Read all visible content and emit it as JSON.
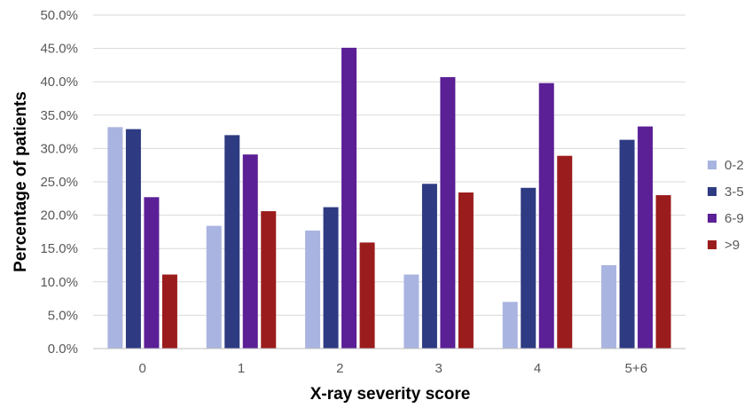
{
  "chart_data": {
    "type": "bar",
    "xlabel": "X-ray severity score",
    "ylabel": "Percentage of patients",
    "categories": [
      "0",
      "1",
      "2",
      "3",
      "4",
      "5+6"
    ],
    "ylim": [
      0,
      50
    ],
    "yticks": [
      0,
      5,
      10,
      15,
      20,
      25,
      30,
      35,
      40,
      45,
      50
    ],
    "ytick_labels": [
      "0.0%",
      "5.0%",
      "10.0%",
      "15.0%",
      "20.0%",
      "25.0%",
      "30.0%",
      "35.0%",
      "40.0%",
      "45.0%",
      "50.0%"
    ],
    "grid": true,
    "legend_position": "right",
    "series": [
      {
        "name": "0-2",
        "color": "#a9b4e0",
        "values": [
          33.2,
          18.4,
          17.7,
          11.1,
          7.0,
          12.5
        ]
      },
      {
        "name": "3-5",
        "color": "#2e3b82",
        "values": [
          32.9,
          32.0,
          21.2,
          24.7,
          24.1,
          31.3
        ]
      },
      {
        "name": "6-9",
        "color": "#5b1f96",
        "values": [
          22.7,
          29.1,
          45.1,
          40.7,
          39.8,
          33.3
        ]
      },
      {
        "name": ">9",
        "color": "#9b1c1c",
        "values": [
          11.1,
          20.6,
          15.9,
          23.4,
          28.9,
          23.0
        ]
      }
    ]
  }
}
